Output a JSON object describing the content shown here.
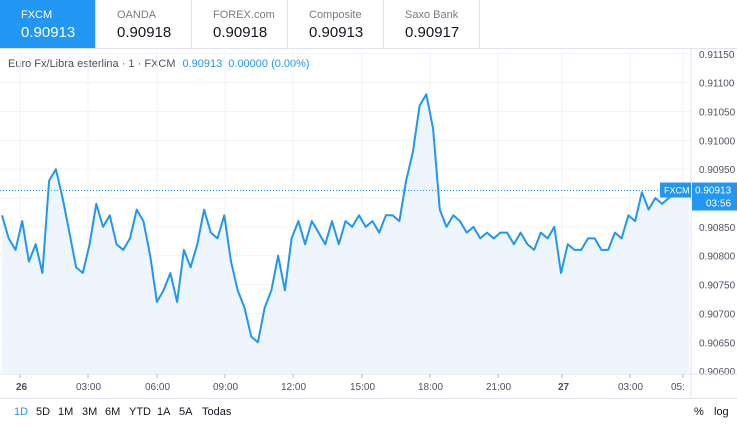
{
  "tabs": [
    {
      "name": "FXCM",
      "price": "0.90913"
    },
    {
      "name": "OANDA",
      "price": "0.90918"
    },
    {
      "name": "FOREX.com",
      "price": "0.90918"
    },
    {
      "name": "Composite",
      "price": "0.90913"
    },
    {
      "name": "Saxo Bank",
      "price": "0.90917"
    }
  ],
  "legend": {
    "title": "Euro Fx/Libra esterlina · 1 · FXCM",
    "value": "0.90913",
    "change": "0.00000 (0.00%)"
  },
  "price_tag": {
    "label": "FXCM",
    "value": "0.90913",
    "countdown": "03:56"
  },
  "time_ranges": [
    "1D",
    "5D",
    "1M",
    "3M",
    "6M",
    "YTD",
    "1A",
    "5A",
    "Todas"
  ],
  "percent_toggle": "%",
  "log_toggle": "log",
  "colors": {
    "accent": "#2196f3",
    "area_fill": "#eef5fd",
    "grid": "#f0f3fa"
  },
  "chart_data": {
    "type": "area",
    "ylim": [
      0.90595,
      0.9116
    ],
    "yticks": [
      "0.91150",
      "0.91100",
      "0.91050",
      "0.91000",
      "0.90950",
      "0.90900",
      "0.90850",
      "0.90800",
      "0.90750",
      "0.90700",
      "0.90650",
      "0.90600"
    ],
    "xticks": [
      "26",
      "03:00",
      "06:00",
      "09:00",
      "12:00",
      "15:00",
      "18:00",
      "21:00",
      "27",
      "03:00",
      "05:"
    ],
    "current": 0.90913,
    "series": [
      {
        "values": [
          0.9087,
          0.9083,
          0.9081,
          0.9086,
          0.9079,
          0.9082,
          0.9077,
          0.9093,
          0.9095,
          0.909,
          0.9084,
          0.9078,
          0.9077,
          0.9082,
          0.9089,
          0.9085,
          0.9087,
          0.9082,
          0.9081,
          0.9083,
          0.9088,
          0.9086,
          0.908,
          0.9072,
          0.9074,
          0.9077,
          0.9072,
          0.9081,
          0.9078,
          0.9082,
          0.9088,
          0.9084,
          0.9083,
          0.9087,
          0.9079,
          0.9074,
          0.9071,
          0.9066,
          0.9065,
          0.9071,
          0.9074,
          0.908,
          0.9074,
          0.9083,
          0.9086,
          0.9082,
          0.9086,
          0.9084,
          0.9082,
          0.9086,
          0.9082,
          0.9086,
          0.9085,
          0.9087,
          0.9085,
          0.9086,
          0.9084,
          0.9087,
          0.9087,
          0.9086,
          0.9093,
          0.9098,
          0.9106,
          0.9108,
          0.9102,
          0.9088,
          0.9085,
          0.9087,
          0.9086,
          0.9084,
          0.9085,
          0.9083,
          0.9084,
          0.9083,
          0.9084,
          0.9084,
          0.9082,
          0.9084,
          0.9082,
          0.9081,
          0.9084,
          0.9083,
          0.9085,
          0.9077,
          0.9082,
          0.9081,
          0.9081,
          0.9083,
          0.9083,
          0.9081,
          0.9081,
          0.9084,
          0.9083,
          0.9087,
          0.9086,
          0.9091,
          0.9088,
          0.909,
          0.9089,
          0.909,
          0.9091,
          0.9091,
          0.9091
        ]
      }
    ]
  }
}
